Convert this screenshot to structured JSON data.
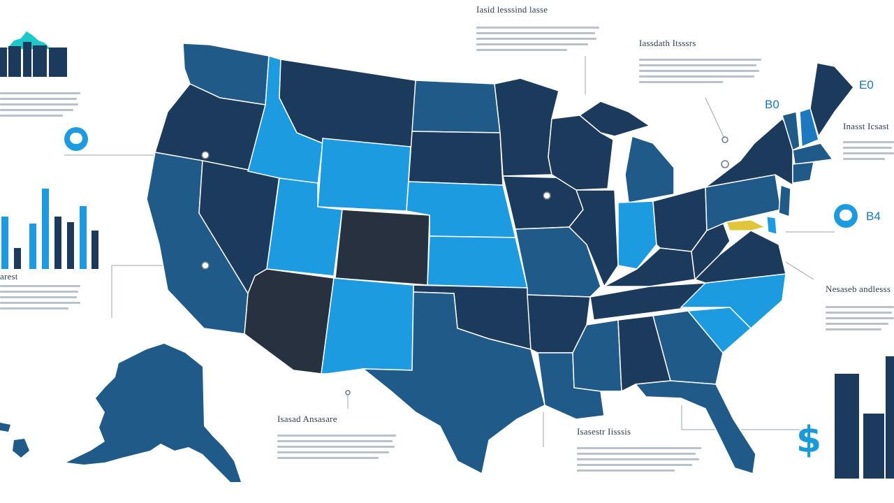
{
  "colors": {
    "navy": "#1b3a5c",
    "mid": "#1f5a88",
    "sky": "#1d9be0",
    "dark": "#27313f",
    "line": "#9aa6b3"
  },
  "labels": {
    "top_heading": "Iasid lesssind lasse",
    "right_heading_1": "Iassdath Itsssrs",
    "right_value_1": "E0",
    "right_value_2": "B0",
    "right_heading_2": "Inasst Icsast",
    "right_value_3": "B4",
    "right_heading_3": "Nesaseb andlesss",
    "bottom_center_heading": "Isasad Ansasare",
    "bottom_right_heading": "Isasestr Iisssis",
    "left_label": "arest"
  },
  "icons": [
    "chat-bubble-icon",
    "chat-bubble-icon",
    "dollar-icon"
  ]
}
